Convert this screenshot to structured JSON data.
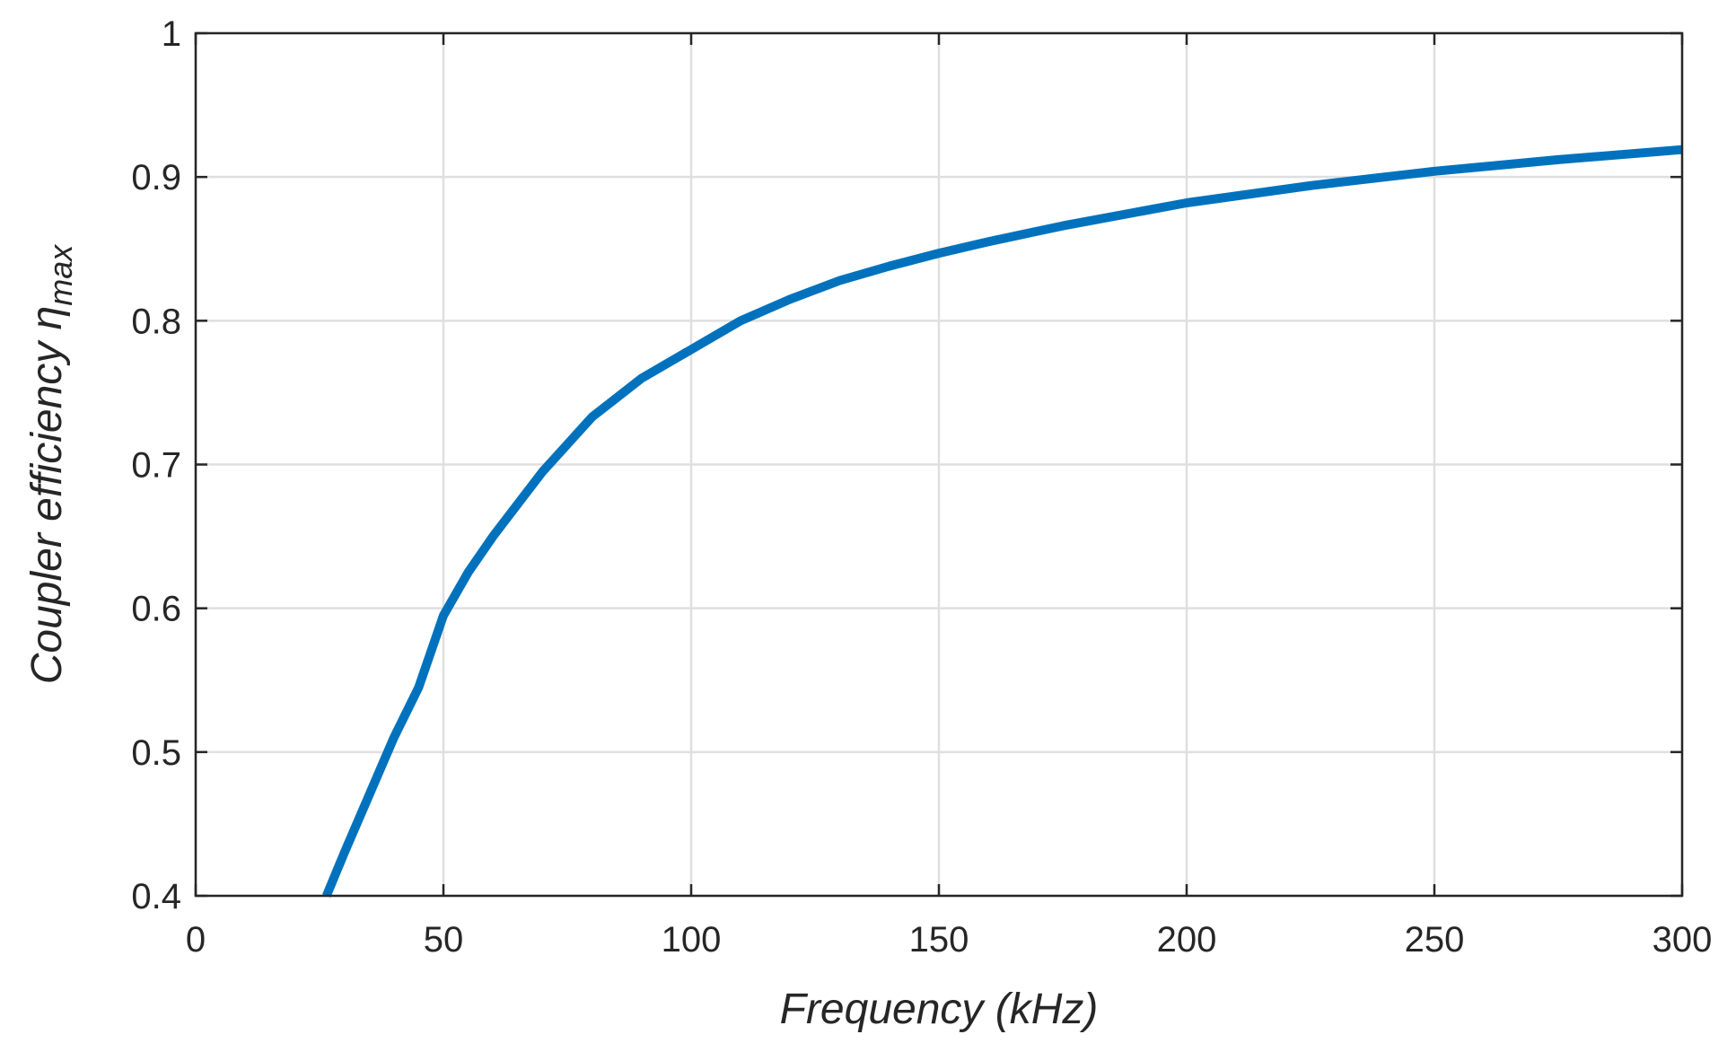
{
  "chart_data": {
    "type": "line",
    "title": "",
    "xlabel": "Frequency (kHz)",
    "ylabel": "Coupler efficiency η",
    "ylabel_subscript": "max",
    "xlim": [
      0,
      300
    ],
    "ylim": [
      0.4,
      1
    ],
    "xticks": [
      0,
      50,
      100,
      150,
      200,
      250,
      300
    ],
    "xtick_labels": [
      "0",
      "50",
      "100",
      "150",
      "200",
      "250",
      "300"
    ],
    "yticks": [
      0.4,
      0.5,
      0.6,
      0.7,
      0.8,
      0.9,
      1
    ],
    "ytick_labels": [
      "0.4",
      "0.5",
      "0.6",
      "0.7",
      "0.8",
      "0.9",
      "1"
    ],
    "grid": true,
    "legend": "none",
    "series": [
      {
        "color": "#0072bd",
        "x": [
          26.4,
          30,
          35,
          40,
          45,
          50,
          55,
          60,
          70,
          80,
          90,
          100,
          110,
          120,
          130,
          140,
          150,
          160,
          175,
          200,
          225,
          250,
          275,
          300
        ],
        "y": [
          0.4,
          0.43,
          0.47,
          0.51,
          0.545,
          0.595,
          0.625,
          0.65,
          0.695,
          0.733,
          0.76,
          0.78,
          0.8,
          0.815,
          0.828,
          0.838,
          0.847,
          0.855,
          0.866,
          0.882,
          0.894,
          0.904,
          0.912,
          0.919
        ]
      }
    ]
  }
}
